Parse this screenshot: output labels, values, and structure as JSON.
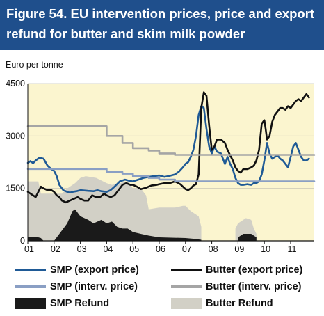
{
  "title": "Figure 54.  EU intervention prices, price and export refund for butter and skim milk powder",
  "colors": {
    "header_bg": "#1f4f8c",
    "plot_bg": "#fbf5cf",
    "smp_export": "#1f5a96",
    "butter_export": "#111111",
    "smp_interv": "#8a9fc4",
    "butter_interv": "#a5a5a5",
    "smp_refund": "#1a1a1a",
    "butter_refund": "#d2d0c6"
  },
  "chart_data": {
    "type": "line",
    "title": "Figure 54.  EU intervention prices, price and export refund for butter and skim milk powder",
    "ylabel": "Euro per tonne",
    "xlabel": "",
    "xlim": [
      2001,
      2011.9
    ],
    "ylim": [
      0,
      4500
    ],
    "y_ticks": [
      0,
      1500,
      3000,
      4500
    ],
    "y_tick_labels": [
      "0",
      "1500",
      "3000",
      "4500"
    ],
    "x_ticks": [
      2001,
      2002,
      2003,
      2004,
      2005,
      2006,
      2007,
      2008,
      2009,
      2010,
      2011
    ],
    "x_tick_labels": [
      "01",
      "02",
      "03",
      "04",
      "05",
      "06",
      "07",
      "08",
      "09",
      "10",
      "11"
    ],
    "grid": true,
    "legend_position": "bottom",
    "series": [
      {
        "name": "SMP (export price)",
        "style": "line",
        "color_key": "smp_export",
        "x": [
          2001.0,
          2001.1,
          2001.2,
          2001.3,
          2001.45,
          2001.6,
          2001.75,
          2001.9,
          2002.0,
          2002.1,
          2002.2,
          2002.35,
          2002.5,
          2002.6,
          2002.7,
          2002.85,
          2003.0,
          2003.15,
          2003.3,
          2003.5,
          2003.65,
          2003.8,
          2004.0,
          2004.15,
          2004.3,
          2004.5,
          2004.7,
          2004.85,
          2005.0,
          2005.2,
          2005.4,
          2005.6,
          2005.8,
          2006.0,
          2006.2,
          2006.4,
          2006.6,
          2006.75,
          2006.9,
          2007.0,
          2007.1,
          2007.2,
          2007.3,
          2007.4,
          2007.5,
          2007.6,
          2007.7,
          2007.8,
          2007.9,
          2008.0,
          2008.1,
          2008.2,
          2008.35,
          2008.5,
          2008.6,
          2008.7,
          2008.8,
          2008.9,
          2009.0,
          2009.1,
          2009.2,
          2009.35,
          2009.5,
          2009.6,
          2009.7,
          2009.8,
          2009.9,
          2010.0,
          2010.1,
          2010.2,
          2010.3,
          2010.4,
          2010.5,
          2010.6,
          2010.7,
          2010.8,
          2010.9,
          2011.0,
          2011.1,
          2011.2,
          2011.3,
          2011.4,
          2011.5,
          2011.6,
          2011.7
        ],
        "y": [
          2230,
          2280,
          2220,
          2300,
          2380,
          2350,
          2150,
          2050,
          2000,
          1850,
          1600,
          1450,
          1400,
          1380,
          1400,
          1420,
          1450,
          1440,
          1430,
          1420,
          1450,
          1420,
          1400,
          1450,
          1550,
          1700,
          1750,
          1720,
          1700,
          1750,
          1800,
          1830,
          1850,
          1870,
          1830,
          1860,
          1900,
          1980,
          2100,
          2200,
          2250,
          2400,
          2600,
          3000,
          3600,
          3850,
          3800,
          3200,
          2700,
          2500,
          2700,
          2550,
          2500,
          2200,
          2400,
          2200,
          2050,
          1800,
          1650,
          1600,
          1600,
          1620,
          1600,
          1650,
          1650,
          1700,
          1900,
          2300,
          2800,
          2500,
          2350,
          2400,
          2450,
          2350,
          2300,
          2200,
          2100,
          2400,
          2700,
          2800,
          2600,
          2400,
          2300,
          2300,
          2350
        ]
      },
      {
        "name": "Butter (export price)",
        "style": "line",
        "color_key": "butter_export",
        "x": [
          2001.0,
          2001.1,
          2001.2,
          2001.3,
          2001.4,
          2001.5,
          2001.6,
          2001.75,
          2001.9,
          2002.0,
          2002.1,
          2002.2,
          2002.3,
          2002.45,
          2002.6,
          2002.75,
          2002.9,
          2003.0,
          2003.15,
          2003.3,
          2003.45,
          2003.6,
          2003.75,
          2003.9,
          2004.0,
          2004.15,
          2004.3,
          2004.45,
          2004.6,
          2004.75,
          2004.9,
          2005.0,
          2005.15,
          2005.3,
          2005.5,
          2005.7,
          2005.9,
          2006.0,
          2006.2,
          2006.4,
          2006.6,
          2006.8,
          2007.0,
          2007.1,
          2007.2,
          2007.3,
          2007.4,
          2007.5,
          2007.6,
          2007.7,
          2007.8,
          2007.9,
          2008.0,
          2008.1,
          2008.2,
          2008.35,
          2008.5,
          2008.6,
          2008.7,
          2008.8,
          2008.9,
          2009.0,
          2009.1,
          2009.2,
          2009.35,
          2009.5,
          2009.6,
          2009.7,
          2009.8,
          2009.9,
          2010.0,
          2010.05,
          2010.1,
          2010.2,
          2010.3,
          2010.4,
          2010.5,
          2010.6,
          2010.7,
          2010.8,
          2010.9,
          2011.0,
          2011.1,
          2011.2,
          2011.3,
          2011.4,
          2011.5,
          2011.6,
          2011.7
        ],
        "y": [
          1400,
          1350,
          1300,
          1250,
          1400,
          1550,
          1500,
          1450,
          1450,
          1400,
          1300,
          1250,
          1150,
          1100,
          1150,
          1200,
          1250,
          1200,
          1150,
          1150,
          1300,
          1250,
          1250,
          1350,
          1300,
          1250,
          1300,
          1450,
          1600,
          1650,
          1600,
          1600,
          1550,
          1480,
          1520,
          1580,
          1600,
          1620,
          1650,
          1650,
          1700,
          1620,
          1480,
          1450,
          1500,
          1580,
          1620,
          1900,
          3800,
          4250,
          4150,
          3300,
          2600,
          2700,
          2900,
          2900,
          2800,
          2600,
          2450,
          2300,
          2100,
          2000,
          1950,
          2050,
          2050,
          2100,
          2150,
          2300,
          2600,
          3350,
          3450,
          3200,
          2900,
          3000,
          3400,
          3600,
          3700,
          3800,
          3800,
          3750,
          3850,
          3800,
          3900,
          4000,
          4050,
          4000,
          4100,
          4200,
          4100
        ]
      },
      {
        "name": "SMP (interv. price)",
        "style": "step",
        "color_key": "smp_interv",
        "x": [
          2001.0,
          2004.0,
          2004.0,
          2004.6,
          2004.6,
          2005.0,
          2005.0,
          2005.6,
          2005.6,
          2006.0,
          2006.0,
          2006.6,
          2006.6,
          2011.9
        ],
        "y": [
          2055,
          2055,
          1970,
          1970,
          1920,
          1920,
          1850,
          1850,
          1800,
          1800,
          1750,
          1750,
          1700,
          1700
        ]
      },
      {
        "name": "Butter (interv. price)",
        "style": "step",
        "color_key": "butter_interv",
        "x": [
          2001.0,
          2004.0,
          2004.0,
          2004.6,
          2004.6,
          2005.0,
          2005.0,
          2005.6,
          2005.6,
          2006.0,
          2006.0,
          2006.6,
          2006.6,
          2011.9
        ],
        "y": [
          3280,
          3280,
          3000,
          3000,
          2800,
          2800,
          2650,
          2650,
          2580,
          2580,
          2500,
          2500,
          2460,
          2460
        ]
      },
      {
        "name": "Butter Refund",
        "style": "area",
        "color_key": "butter_refund",
        "x": [
          2001.0,
          2001.4,
          2001.5,
          2002.3,
          2002.5,
          2002.8,
          2003.0,
          2003.2,
          2003.6,
          2004.0,
          2004.2,
          2004.5,
          2004.8,
          2005.0,
          2005.3,
          2005.5,
          2005.6,
          2006.0,
          2006.4,
          2006.6,
          2006.9,
          2007.0,
          2007.2,
          2007.5,
          2007.6,
          2007.6,
          2008.9,
          2008.9,
          2009.0,
          2009.3,
          2009.5,
          2009.6,
          2009.7,
          2009.7,
          2011.9
        ],
        "y": [
          1700,
          1700,
          1350,
          1350,
          1500,
          1650,
          1800,
          1850,
          1800,
          1650,
          1600,
          1650,
          1700,
          1500,
          1500,
          1300,
          900,
          950,
          950,
          950,
          1000,
          1000,
          850,
          700,
          400,
          0,
          0,
          350,
          500,
          650,
          600,
          350,
          200,
          0,
          0
        ]
      },
      {
        "name": "SMP Refund",
        "style": "area",
        "color_key": "smp_refund",
        "x": [
          2001.0,
          2001.3,
          2001.5,
          2001.6,
          2002.0,
          2002.2,
          2002.5,
          2002.7,
          2002.8,
          2003.0,
          2003.3,
          2003.5,
          2003.8,
          2004.0,
          2004.2,
          2004.4,
          2004.6,
          2004.8,
          2005.0,
          2005.3,
          2005.6,
          2006.0,
          2007.0,
          2007.3,
          2007.6,
          2007.6,
          2009.0,
          2009.0,
          2009.2,
          2009.5,
          2009.7,
          2009.7,
          2011.9
        ],
        "y": [
          120,
          120,
          80,
          0,
          0,
          200,
          500,
          850,
          900,
          700,
          600,
          500,
          600,
          500,
          550,
          400,
          350,
          350,
          250,
          200,
          150,
          100,
          80,
          60,
          30,
          0,
          0,
          100,
          200,
          200,
          100,
          0,
          0
        ]
      }
    ]
  },
  "legend": [
    {
      "label": "SMP (export price)",
      "color_key": "smp_export",
      "kind": "line"
    },
    {
      "label": "Butter (export price)",
      "color_key": "butter_export",
      "kind": "line"
    },
    {
      "label": "SMP (interv. price)",
      "color_key": "smp_interv",
      "kind": "line"
    },
    {
      "label": "Butter (interv. price)",
      "color_key": "butter_interv",
      "kind": "line"
    },
    {
      "label": "SMP Refund",
      "color_key": "smp_refund",
      "kind": "box"
    },
    {
      "label": "Butter Refund",
      "color_key": "butter_refund",
      "kind": "box"
    }
  ]
}
